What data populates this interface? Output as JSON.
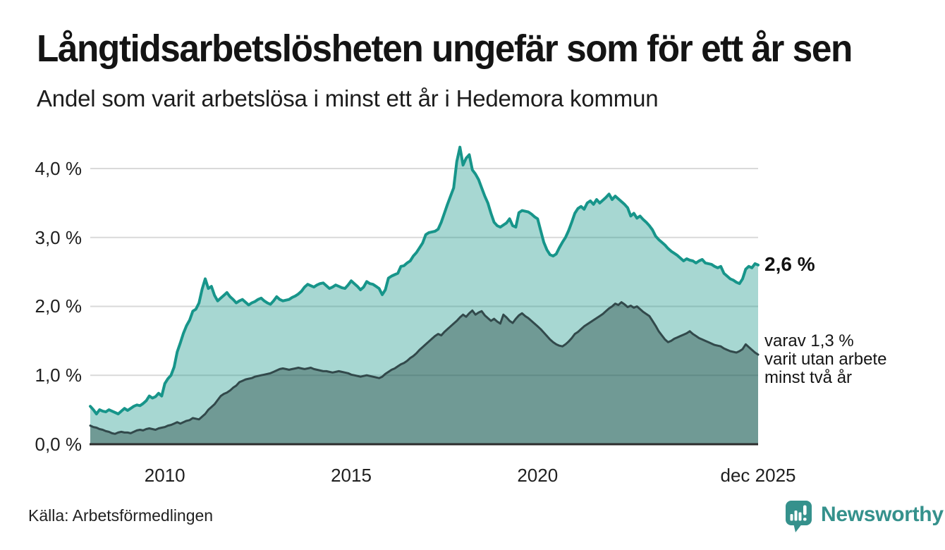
{
  "header": {
    "title": "Långtidsarbetslösheten ungefär som för ett år sen",
    "subtitle": "Andel som varit arbetslösa i minst ett år i Hedemora kommun"
  },
  "annotations": {
    "latest_total": "2,6 %",
    "latest_sub_lines": [
      "varav 1,3 %",
      "varit utan arbete",
      "minst två år"
    ]
  },
  "source": {
    "label": "Källa: Arbetsförmedlingen"
  },
  "branding": {
    "name": "Newsworthy",
    "icon": "newsworthy-speech-bubble-bar-chart-icon",
    "color": "#35918c"
  },
  "chart_data": {
    "type": "area",
    "title": "Långtidsarbetslösheten ungefär som för ett år sen",
    "subtitle": "Andel som varit arbetslösa i minst ett år i Hedemora kommun",
    "unit": "%",
    "grid": "horizontal",
    "grid_color": "#d9d9d9",
    "axis_color": "#2d2d2d",
    "x_domain": [
      2008,
      2025.9167
    ],
    "y_domain": [
      0,
      4.45
    ],
    "x_start_year": 2008,
    "interval_months": 1,
    "y_ticks": [
      {
        "value": 0,
        "label": "0,0 %"
      },
      {
        "value": 1,
        "label": "1,0 %"
      },
      {
        "value": 2,
        "label": "2,0 %"
      },
      {
        "value": 3,
        "label": "3,0 %"
      },
      {
        "value": 4,
        "label": "4,0 %"
      }
    ],
    "x_ticks": [
      {
        "year": 2010,
        "label": "2010"
      },
      {
        "year": 2015,
        "label": "2015"
      },
      {
        "year": 2020,
        "label": "2020"
      },
      {
        "year": 2025.9167,
        "label": "dec 2025"
      }
    ],
    "series": [
      {
        "name": "arbetslösa minst ett år",
        "latest_label": "2,6 %",
        "line_color": "#17958a",
        "line_width": 4,
        "fill_color": "rgba(23,149,138,0.38)",
        "values": [
          0.55,
          0.5,
          0.44,
          0.5,
          0.48,
          0.47,
          0.5,
          0.48,
          0.46,
          0.44,
          0.48,
          0.52,
          0.49,
          0.52,
          0.55,
          0.57,
          0.56,
          0.59,
          0.63,
          0.7,
          0.67,
          0.69,
          0.74,
          0.7,
          0.88,
          0.95,
          1.0,
          1.12,
          1.34,
          1.47,
          1.61,
          1.72,
          1.8,
          1.93,
          1.96,
          2.05,
          2.25,
          2.4,
          2.26,
          2.29,
          2.16,
          2.08,
          2.12,
          2.16,
          2.2,
          2.14,
          2.1,
          2.05,
          2.08,
          2.1,
          2.06,
          2.02,
          2.05,
          2.07,
          2.1,
          2.12,
          2.08,
          2.05,
          2.03,
          2.08,
          2.14,
          2.1,
          2.08,
          2.09,
          2.1,
          2.13,
          2.15,
          2.18,
          2.22,
          2.28,
          2.32,
          2.3,
          2.28,
          2.31,
          2.33,
          2.34,
          2.3,
          2.26,
          2.28,
          2.31,
          2.29,
          2.27,
          2.26,
          2.31,
          2.37,
          2.33,
          2.29,
          2.24,
          2.28,
          2.36,
          2.33,
          2.32,
          2.29,
          2.26,
          2.17,
          2.24,
          2.41,
          2.44,
          2.46,
          2.48,
          2.58,
          2.59,
          2.63,
          2.66,
          2.73,
          2.78,
          2.85,
          2.92,
          3.04,
          3.07,
          3.08,
          3.09,
          3.12,
          3.22,
          3.35,
          3.48,
          3.6,
          3.72,
          4.1,
          4.31,
          4.05,
          4.15,
          4.2,
          3.98,
          3.92,
          3.84,
          3.72,
          3.6,
          3.5,
          3.35,
          3.22,
          3.17,
          3.15,
          3.18,
          3.21,
          3.27,
          3.17,
          3.15,
          3.36,
          3.39,
          3.38,
          3.37,
          3.34,
          3.3,
          3.27,
          3.1,
          2.93,
          2.82,
          2.75,
          2.73,
          2.76,
          2.85,
          2.93,
          3.0,
          3.1,
          3.22,
          3.35,
          3.42,
          3.45,
          3.41,
          3.5,
          3.53,
          3.48,
          3.55,
          3.5,
          3.54,
          3.58,
          3.63,
          3.55,
          3.6,
          3.56,
          3.52,
          3.48,
          3.43,
          3.31,
          3.35,
          3.28,
          3.31,
          3.26,
          3.22,
          3.17,
          3.11,
          3.02,
          2.97,
          2.93,
          2.89,
          2.84,
          2.8,
          2.77,
          2.74,
          2.7,
          2.66,
          2.69,
          2.67,
          2.66,
          2.63,
          2.66,
          2.68,
          2.63,
          2.62,
          2.61,
          2.58,
          2.56,
          2.58,
          2.48,
          2.44,
          2.4,
          2.38,
          2.35,
          2.33,
          2.4,
          2.54,
          2.58,
          2.56,
          2.62,
          2.6
        ]
      },
      {
        "name": "varav utan arbete minst två år",
        "latest_label": "1,3 %",
        "line_color": "#32494b",
        "line_width": 3,
        "fill_color": "rgba(35,68,64,0.42)",
        "values": [
          0.27,
          0.25,
          0.24,
          0.22,
          0.21,
          0.19,
          0.18,
          0.16,
          0.15,
          0.17,
          0.18,
          0.17,
          0.17,
          0.16,
          0.18,
          0.2,
          0.21,
          0.2,
          0.22,
          0.23,
          0.22,
          0.21,
          0.23,
          0.24,
          0.25,
          0.27,
          0.28,
          0.3,
          0.32,
          0.3,
          0.32,
          0.34,
          0.35,
          0.38,
          0.37,
          0.36,
          0.4,
          0.44,
          0.5,
          0.54,
          0.58,
          0.64,
          0.7,
          0.73,
          0.75,
          0.78,
          0.82,
          0.85,
          0.9,
          0.92,
          0.94,
          0.95,
          0.96,
          0.98,
          0.99,
          1.0,
          1.01,
          1.02,
          1.03,
          1.05,
          1.07,
          1.09,
          1.1,
          1.09,
          1.08,
          1.09,
          1.1,
          1.11,
          1.1,
          1.09,
          1.1,
          1.11,
          1.09,
          1.08,
          1.07,
          1.06,
          1.06,
          1.05,
          1.04,
          1.05,
          1.06,
          1.05,
          1.04,
          1.03,
          1.01,
          1.0,
          0.99,
          0.98,
          0.99,
          1.0,
          0.99,
          0.98,
          0.97,
          0.96,
          0.98,
          1.02,
          1.05,
          1.08,
          1.1,
          1.13,
          1.16,
          1.18,
          1.21,
          1.25,
          1.28,
          1.32,
          1.37,
          1.41,
          1.45,
          1.49,
          1.53,
          1.57,
          1.6,
          1.58,
          1.63,
          1.67,
          1.71,
          1.75,
          1.79,
          1.84,
          1.88,
          1.85,
          1.9,
          1.94,
          1.88,
          1.91,
          1.93,
          1.87,
          1.83,
          1.79,
          1.82,
          1.78,
          1.75,
          1.88,
          1.84,
          1.79,
          1.76,
          1.82,
          1.87,
          1.9,
          1.86,
          1.83,
          1.79,
          1.75,
          1.71,
          1.67,
          1.62,
          1.57,
          1.52,
          1.48,
          1.45,
          1.43,
          1.42,
          1.45,
          1.49,
          1.54,
          1.6,
          1.63,
          1.67,
          1.71,
          1.74,
          1.77,
          1.8,
          1.83,
          1.86,
          1.89,
          1.93,
          1.97,
          2.0,
          2.04,
          2.02,
          2.06,
          2.03,
          1.99,
          2.01,
          1.98,
          2.0,
          1.96,
          1.92,
          1.89,
          1.86,
          1.79,
          1.72,
          1.64,
          1.58,
          1.52,
          1.48,
          1.5,
          1.53,
          1.55,
          1.57,
          1.59,
          1.61,
          1.64,
          1.6,
          1.57,
          1.54,
          1.52,
          1.5,
          1.48,
          1.46,
          1.44,
          1.43,
          1.42,
          1.39,
          1.37,
          1.35,
          1.34,
          1.33,
          1.35,
          1.38,
          1.45,
          1.41,
          1.37,
          1.33,
          1.3
        ]
      }
    ]
  }
}
